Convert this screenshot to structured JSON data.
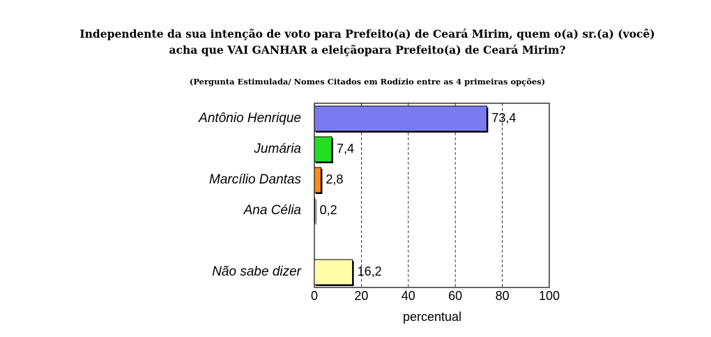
{
  "chart_data": {
    "type": "hbar",
    "title": [
      "Independente da sua intenção de voto para Prefeito(a) de Ceará Mirim, quem o(a) sr.(a) (você)",
      "acha que VAI GANHAR a eleiçãopara Prefeito(a) de Ceará Mirim?"
    ],
    "subtitle": "(Pergunta Estimulada/ Nomes Citados em Rodízio entre as 4 primeiras opções)",
    "categories": [
      "Antônio Henrique",
      "Jumária",
      "Marcílio Dantas",
      "Ana Célia",
      null,
      "Não sabe dizer"
    ],
    "values": [
      73.4,
      7.4,
      2.8,
      0.2,
      null,
      16.2
    ],
    "value_labels": [
      "73,4",
      "7,4",
      "2,8",
      "0,2",
      null,
      "16,2"
    ],
    "colors": [
      "#7b7bef",
      "#22dd22",
      "#ff8c1a",
      "#333333",
      null,
      "#ffffaa"
    ],
    "xlim": [
      0,
      100
    ],
    "xticks": [
      0,
      20,
      40,
      60,
      80,
      100
    ],
    "xlabel": "percentual",
    "grid": true
  }
}
